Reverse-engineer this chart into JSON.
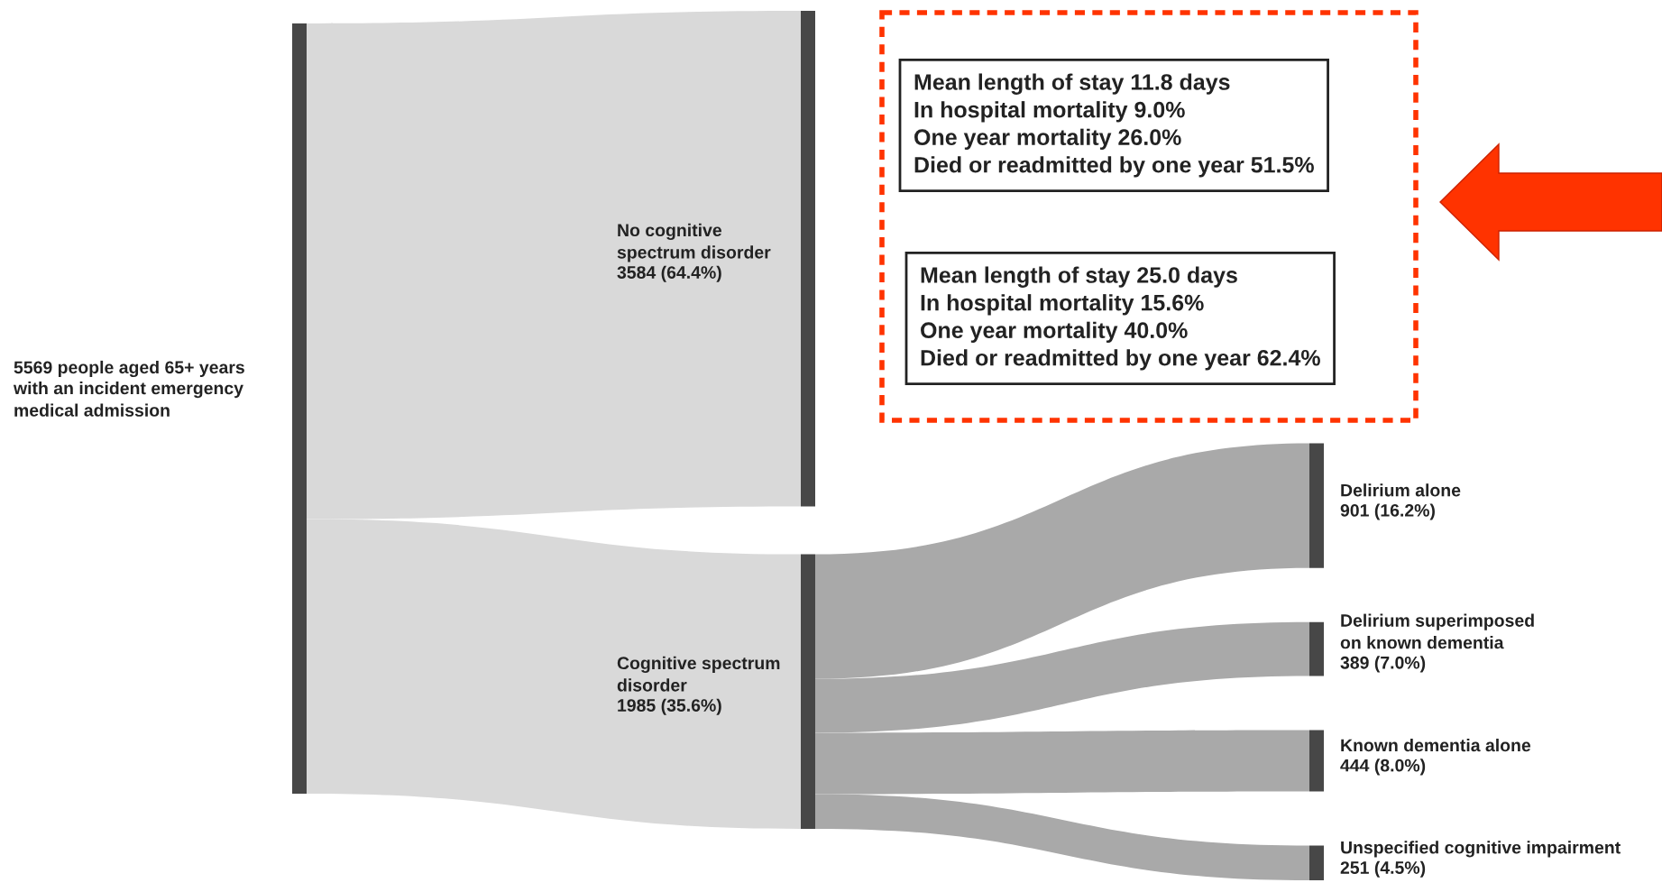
{
  "chart_data": {
    "type": "other",
    "categories": [
      "people aged 65+ years\nwith an incident emergency\nmedical admission",
      "No cognitive\nspectrum disorder",
      "Cognitive spectrum\ndisorder",
      "Delirium alone",
      "Delirium superimposed\non known dementia",
      "Known dementia alone",
      "Unspecified cognitive impairment"
    ],
    "values": [
      5569,
      3584,
      1985,
      901,
      389,
      444,
      251
    ],
    "value_labels": [
      "5569",
      "3584 (64.4%)",
      "1985 (35.6%)",
      "901 (16.2%)",
      "389 (7.0%)",
      "444 (8.0%)",
      "251 (4.5%)"
    ],
    "annotations": [
      "Mean length of stay 11.8 days\nIn hospital mortality 9.0%\nOne year mortality 26.0%\nDied or readmitted by one year 51.5%",
      "Mean length of stay 25.0 days\nIn hospital mortality 15.6%\nOne year mortality 40.0%\nDied or readmitted by one year 62.4%"
    ]
  }
}
